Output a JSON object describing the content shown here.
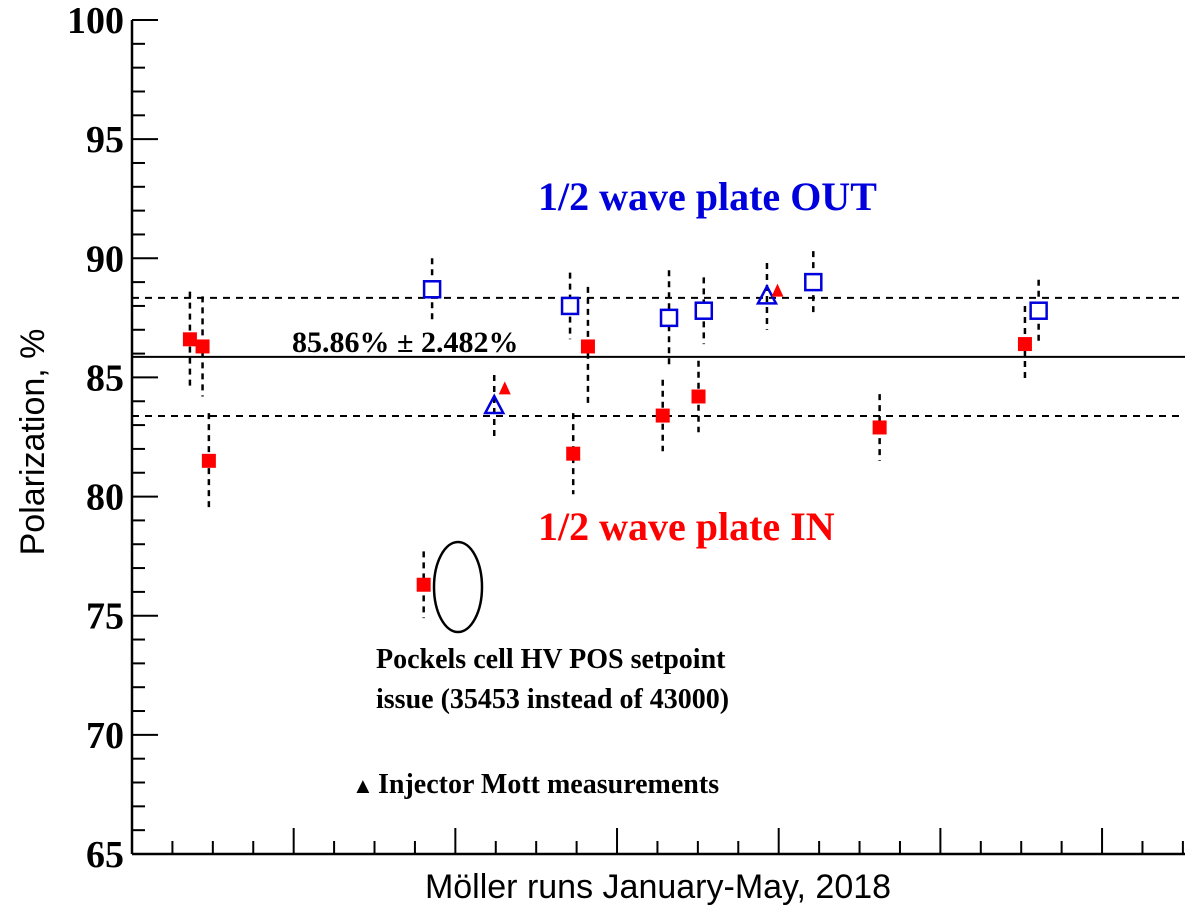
{
  "chart_data": {
    "type": "scatter",
    "xlabel": "Möller runs January-May, 2018",
    "ylabel": "Polarization, %",
    "ylim": [
      65,
      100
    ],
    "xlim": [
      0,
      1
    ],
    "yticks": [
      "65",
      "70",
      "75",
      "80",
      "85",
      "90",
      "95",
      "100"
    ],
    "grid": false,
    "mean": {
      "value": 85.86,
      "sigma": 2.482,
      "upper": 88.34,
      "lower": 83.38,
      "label": "85.86% ± 2.482%"
    },
    "series": [
      {
        "name": "1/2 wave plate IN",
        "marker": "filled-square",
        "color": "#ff0000",
        "points": [
          {
            "x": 0.055,
            "y": 86.6,
            "err": 2.0
          },
          {
            "x": 0.067,
            "y": 86.3,
            "err": 2.1
          },
          {
            "x": 0.073,
            "y": 81.5,
            "err": 2.0
          },
          {
            "x": 0.277,
            "y": 76.3,
            "err": 1.4
          },
          {
            "x": 0.419,
            "y": 81.8,
            "err": 1.7
          },
          {
            "x": 0.433,
            "y": 86.3,
            "err": 2.5
          },
          {
            "x": 0.504,
            "y": 83.4,
            "err": 1.5
          },
          {
            "x": 0.538,
            "y": 84.2,
            "err": 1.5
          },
          {
            "x": 0.71,
            "y": 82.9,
            "err": 1.4
          },
          {
            "x": 0.848,
            "y": 86.4,
            "err": 1.6
          }
        ]
      },
      {
        "name": "1/2 wave plate OUT",
        "marker": "open-square",
        "color": "#0000dd",
        "points": [
          {
            "x": 0.285,
            "y": 88.7,
            "err": 1.3
          },
          {
            "x": 0.416,
            "y": 88.0,
            "err": 1.4
          },
          {
            "x": 0.51,
            "y": 87.5,
            "err": 2.0
          },
          {
            "x": 0.543,
            "y": 87.8,
            "err": 1.4
          },
          {
            "x": 0.647,
            "y": 89.0,
            "err": 1.3
          },
          {
            "x": 0.861,
            "y": 87.8,
            "err": 1.3
          }
        ]
      },
      {
        "name": "Injector Mott measurements (OUT)",
        "marker": "open-triangle",
        "color": "#0000dd",
        "points": [
          {
            "x": 0.344,
            "y": 83.8,
            "err": 1.3
          },
          {
            "x": 0.603,
            "y": 88.4,
            "err": 1.4
          }
        ]
      },
      {
        "name": "Injector Mott measurements (IN)",
        "marker": "filled-triangle",
        "color": "#ff0000",
        "points": [
          {
            "x": 0.354,
            "y": 84.5,
            "err": 0
          },
          {
            "x": 0.613,
            "y": 88.6,
            "err": 0
          }
        ]
      }
    ],
    "annotations": {
      "out_label": "1/2 wave plate OUT",
      "in_label": "1/2 wave plate IN",
      "pockels_line1": "Pockels cell HV POS setpoint",
      "pockels_line2": "issue (35453 instead of 43000)",
      "legend_label": "Injector Mott measurements",
      "legend_marker": "▲"
    },
    "colors": {
      "in": "#ff0000",
      "out": "#0000dd",
      "axis": "#000000"
    }
  }
}
